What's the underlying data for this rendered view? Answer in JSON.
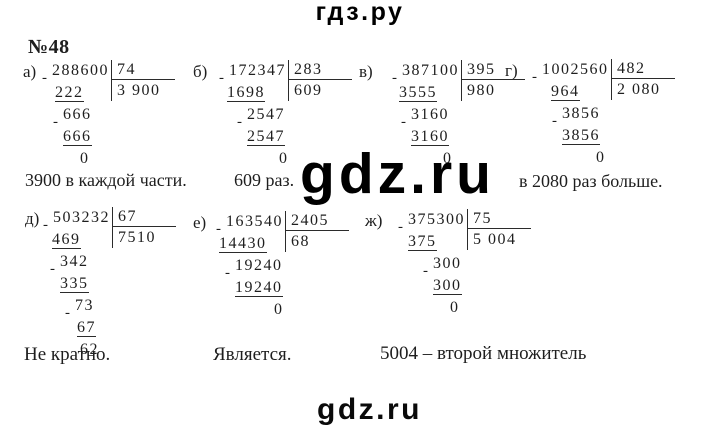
{
  "site": {
    "header_logo": "гдз.ру",
    "center_watermark": "gdz.ru",
    "bottom_watermark": "gdz.ru"
  },
  "task_number": "№48",
  "problems": [
    {
      "id": "a",
      "label": "а)",
      "dividend": "288600",
      "divisor": "74",
      "quotient": "3 900",
      "steps": [
        {
          "text": "222",
          "underline": true
        },
        {
          "text": "666",
          "minus": true
        },
        {
          "text": "666",
          "underline": true
        },
        {
          "text": "0"
        }
      ]
    },
    {
      "id": "b",
      "label": "б)",
      "dividend": "172347",
      "divisor": "283",
      "quotient": "609",
      "steps": [
        {
          "text": "1698",
          "underline": true
        },
        {
          "text": "2547",
          "minus": true
        },
        {
          "text": "2547",
          "underline": true
        },
        {
          "text": "0"
        }
      ]
    },
    {
      "id": "v",
      "label": "в)",
      "dividend": "387100",
      "divisor": "395",
      "quotient": "980",
      "steps": [
        {
          "text": "3555",
          "underline": true
        },
        {
          "text": "3160",
          "minus": true
        },
        {
          "text": "3160",
          "underline": true
        },
        {
          "text": "0"
        }
      ]
    },
    {
      "id": "g",
      "label": "г)",
      "dividend": "1002560",
      "divisor": "482",
      "quotient": "2 080",
      "steps": [
        {
          "text": "964",
          "underline": true
        },
        {
          "text": "3856",
          "minus": true
        },
        {
          "text": "3856",
          "underline": true
        },
        {
          "text": "0"
        }
      ]
    },
    {
      "id": "d",
      "label": "д)",
      "dividend": "503232",
      "divisor": "67",
      "quotient": "7510",
      "steps": [
        {
          "text": "469",
          "underline": true
        },
        {
          "text": "342",
          "minus": true
        },
        {
          "text": "335",
          "underline": true
        },
        {
          "text": "73",
          "minus": true
        },
        {
          "text": "67",
          "underline": true
        },
        {
          "text": "62"
        }
      ]
    },
    {
      "id": "e",
      "label": "е)",
      "dividend": "163540",
      "divisor": "2405",
      "quotient": "68",
      "steps": [
        {
          "text": "14430",
          "underline": true
        },
        {
          "text": "19240",
          "minus": true
        },
        {
          "text": "19240",
          "underline": true
        },
        {
          "text": "0"
        }
      ]
    },
    {
      "id": "zh",
      "label": "ж)",
      "dividend": "375300",
      "divisor": "75",
      "quotient": "5 004",
      "steps": [
        {
          "text": "375",
          "underline": true
        },
        {
          "text": "300",
          "minus": true
        },
        {
          "text": "300",
          "underline": true
        },
        {
          "text": "0"
        }
      ]
    }
  ],
  "captions": [
    "3900 в каждой части.",
    "609 раз.",
    "в 2080 раз больше.",
    "Не кратно.",
    "Является.",
    "5004 – второй множитель"
  ]
}
